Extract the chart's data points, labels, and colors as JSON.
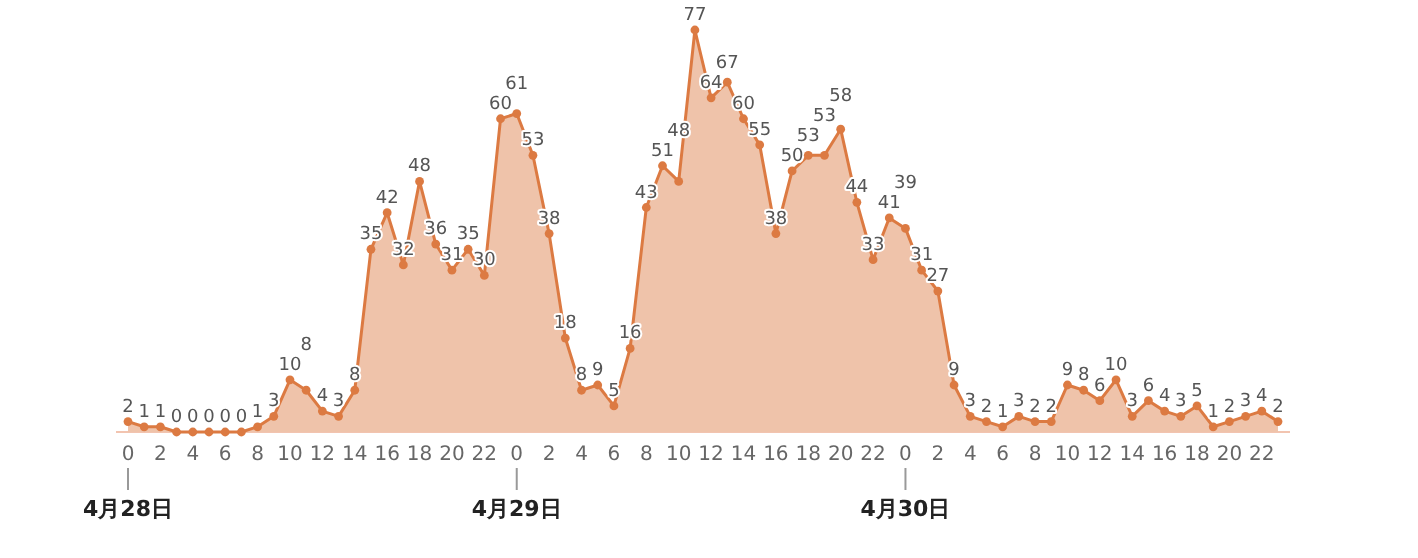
{
  "chart_data": {
    "type": "area",
    "categories": [
      "0",
      null,
      "2",
      null,
      "4",
      null,
      "6",
      null,
      "8",
      null,
      "10",
      null,
      "12",
      null,
      "14",
      null,
      "16",
      null,
      "18",
      null,
      "20",
      null,
      "22",
      null,
      "0",
      null,
      "2",
      null,
      "4",
      null,
      "6",
      null,
      "8",
      null,
      "10",
      null,
      "12",
      null,
      "14",
      null,
      "16",
      null,
      "18",
      null,
      "20",
      null,
      "22",
      null,
      "0",
      null,
      "2",
      null,
      "4",
      null,
      "6",
      null,
      "8",
      null,
      "10",
      null,
      "12",
      null,
      "14",
      null,
      "16",
      null,
      "18",
      null,
      "20",
      null,
      "22",
      null
    ],
    "series": [
      {
        "color": "#dc7a42",
        "values": [
          2,
          1,
          1,
          0,
          0,
          0,
          0,
          0,
          1,
          3,
          10,
          8,
          4,
          3,
          8,
          35,
          42,
          32,
          48,
          36,
          31,
          35,
          30,
          60,
          61,
          53,
          38,
          18,
          8,
          9,
          5,
          16,
          43,
          51,
          48,
          77,
          64,
          67,
          60,
          55,
          38,
          50,
          53,
          53,
          58,
          44,
          33,
          41,
          39,
          31,
          27,
          9,
          3,
          2,
          1,
          3,
          2,
          2,
          9,
          8,
          6,
          10,
          3,
          6,
          4,
          3,
          5,
          1,
          2,
          3,
          4,
          2
        ]
      }
    ],
    "data_labels": true,
    "marker": "circle",
    "annotations": [
      "4月28日",
      "4月29日",
      "4月30日"
    ]
  }
}
